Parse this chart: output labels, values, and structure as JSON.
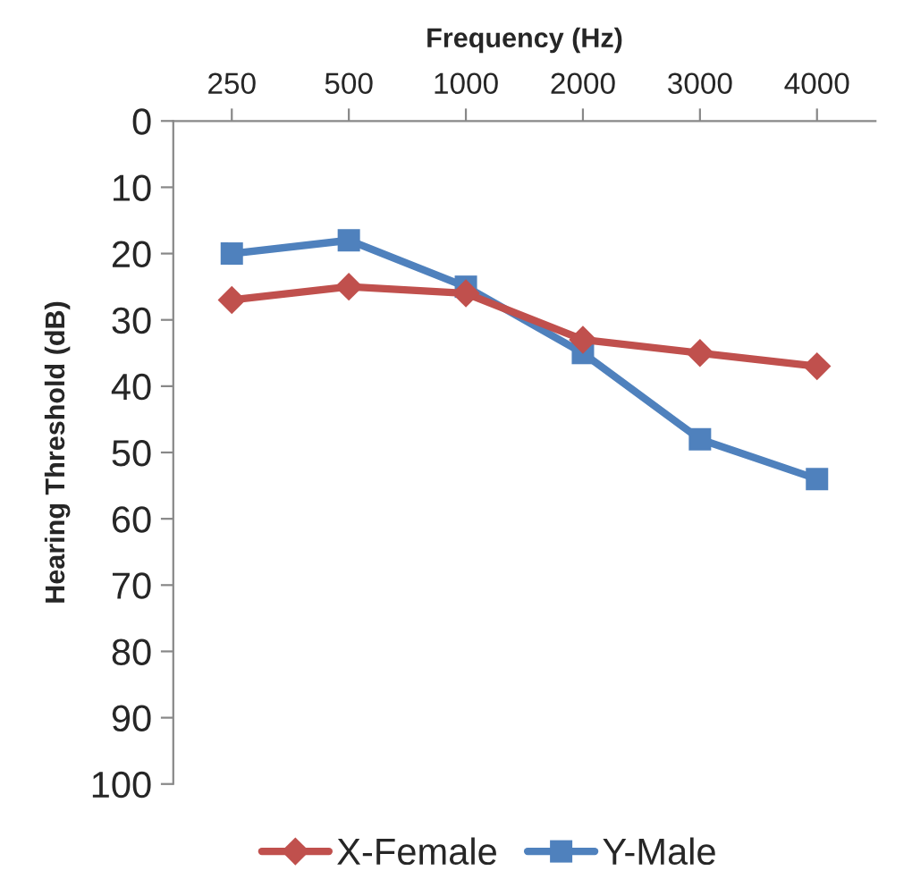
{
  "chart_data": {
    "type": "line",
    "xlabel": "Frequency (Hz)",
    "ylabel": "Hearing Threshold (dB)",
    "categories": [
      "250",
      "500",
      "1000",
      "2000",
      "3000",
      "4000"
    ],
    "series": [
      {
        "name": "X-Female",
        "color": "#c0504d",
        "marker": "diamond",
        "values": [
          27,
          25,
          26,
          33,
          35,
          37
        ]
      },
      {
        "name": "Y-Male",
        "color": "#4f81bd",
        "marker": "square",
        "values": [
          20,
          18,
          25,
          35,
          48,
          54
        ]
      }
    ],
    "ylim": [
      100,
      0
    ],
    "yticks": [
      0,
      10,
      20,
      30,
      40,
      50,
      60,
      70,
      80,
      90,
      100
    ],
    "grid": false,
    "legend": "bottom",
    "line_style": "solid"
  }
}
